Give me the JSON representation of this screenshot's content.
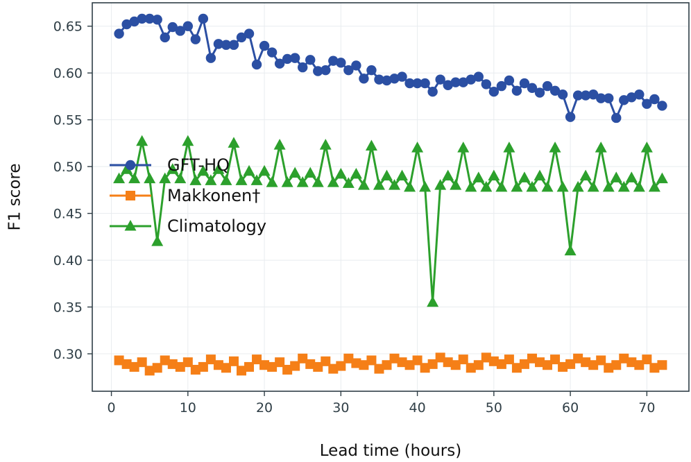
{
  "chart_data": {
    "type": "line",
    "title": "",
    "xlabel": "Lead time (hours)",
    "ylabel": "F1 score",
    "xlim": [
      -2.5,
      75.5
    ],
    "ylim": [
      0.26,
      0.675
    ],
    "xticks": [
      0,
      10,
      20,
      30,
      40,
      50,
      60,
      70
    ],
    "xtick_labels": [
      "0",
      "10",
      "20",
      "30",
      "40",
      "50",
      "60",
      "70"
    ],
    "yticks": [
      0.3,
      0.35,
      0.4,
      0.45,
      0.5,
      0.55,
      0.6,
      0.65
    ],
    "ytick_labels": [
      "0.30",
      "0.35",
      "0.40",
      "0.45",
      "0.50",
      "0.55",
      "0.60",
      "0.65"
    ],
    "grid": true,
    "legend_position": "center-left",
    "x": [
      1,
      2,
      3,
      4,
      5,
      6,
      7,
      8,
      9,
      10,
      11,
      12,
      13,
      14,
      15,
      16,
      17,
      18,
      19,
      20,
      21,
      22,
      23,
      24,
      25,
      26,
      27,
      28,
      29,
      30,
      31,
      32,
      33,
      34,
      35,
      36,
      37,
      38,
      39,
      40,
      41,
      42,
      43,
      44,
      45,
      46,
      47,
      48,
      49,
      50,
      51,
      52,
      53,
      54,
      55,
      56,
      57,
      58,
      59,
      60,
      61,
      62,
      63,
      64,
      65,
      66,
      67,
      68,
      69,
      70,
      71,
      72
    ],
    "series": [
      {
        "name": "GFT-HQ",
        "color": "#2b4fa3",
        "marker": "circle",
        "values": [
          0.642,
          0.652,
          0.655,
          0.658,
          0.658,
          0.657,
          0.638,
          0.649,
          0.645,
          0.65,
          0.636,
          0.658,
          0.616,
          0.631,
          0.63,
          0.63,
          0.638,
          0.642,
          0.609,
          0.629,
          0.622,
          0.61,
          0.615,
          0.616,
          0.606,
          0.614,
          0.602,
          0.603,
          0.613,
          0.611,
          0.603,
          0.608,
          0.594,
          0.603,
          0.593,
          0.592,
          0.594,
          0.596,
          0.589,
          0.589,
          0.589,
          0.58,
          0.593,
          0.587,
          0.59,
          0.59,
          0.593,
          0.596,
          0.588,
          0.58,
          0.586,
          0.592,
          0.581,
          0.589,
          0.584,
          0.579,
          0.586,
          0.581,
          0.577,
          0.553,
          0.576,
          0.576,
          0.577,
          0.573,
          0.573,
          0.552,
          0.571,
          0.574,
          0.577,
          0.567,
          0.572,
          0.565
        ]
      },
      {
        "name": "Makkonen†",
        "color": "#f57f17",
        "marker": "square",
        "values": [
          0.293,
          0.289,
          0.286,
          0.291,
          0.282,
          0.285,
          0.293,
          0.289,
          0.286,
          0.291,
          0.283,
          0.286,
          0.294,
          0.288,
          0.285,
          0.292,
          0.282,
          0.286,
          0.294,
          0.288,
          0.286,
          0.291,
          0.283,
          0.287,
          0.295,
          0.289,
          0.286,
          0.292,
          0.284,
          0.287,
          0.295,
          0.29,
          0.288,
          0.293,
          0.284,
          0.288,
          0.295,
          0.291,
          0.288,
          0.293,
          0.285,
          0.289,
          0.296,
          0.291,
          0.288,
          0.294,
          0.285,
          0.288,
          0.296,
          0.292,
          0.289,
          0.294,
          0.285,
          0.289,
          0.295,
          0.291,
          0.288,
          0.294,
          0.286,
          0.289,
          0.295,
          0.291,
          0.288,
          0.293,
          0.285,
          0.288,
          0.295,
          0.291,
          0.288,
          0.294,
          0.285,
          0.288
        ]
      },
      {
        "name": "Climatology",
        "color": "#2ca02c",
        "marker": "triangle",
        "values": [
          0.487,
          0.497,
          0.487,
          0.527,
          0.487,
          0.42,
          0.487,
          0.497,
          0.487,
          0.527,
          0.485,
          0.495,
          0.485,
          0.497,
          0.485,
          0.525,
          0.485,
          0.495,
          0.485,
          0.495,
          0.483,
          0.523,
          0.483,
          0.493,
          0.483,
          0.493,
          0.483,
          0.523,
          0.483,
          0.492,
          0.482,
          0.492,
          0.48,
          0.522,
          0.48,
          0.49,
          0.48,
          0.49,
          0.478,
          0.52,
          0.478,
          0.355,
          0.48,
          0.49,
          0.48,
          0.52,
          0.478,
          0.488,
          0.478,
          0.49,
          0.478,
          0.52,
          0.478,
          0.488,
          0.478,
          0.49,
          0.478,
          0.52,
          0.478,
          0.41,
          0.478,
          0.49,
          0.478,
          0.52,
          0.478,
          0.488,
          0.478,
          0.488,
          0.478,
          0.52,
          0.478,
          0.487
        ]
      }
    ]
  }
}
